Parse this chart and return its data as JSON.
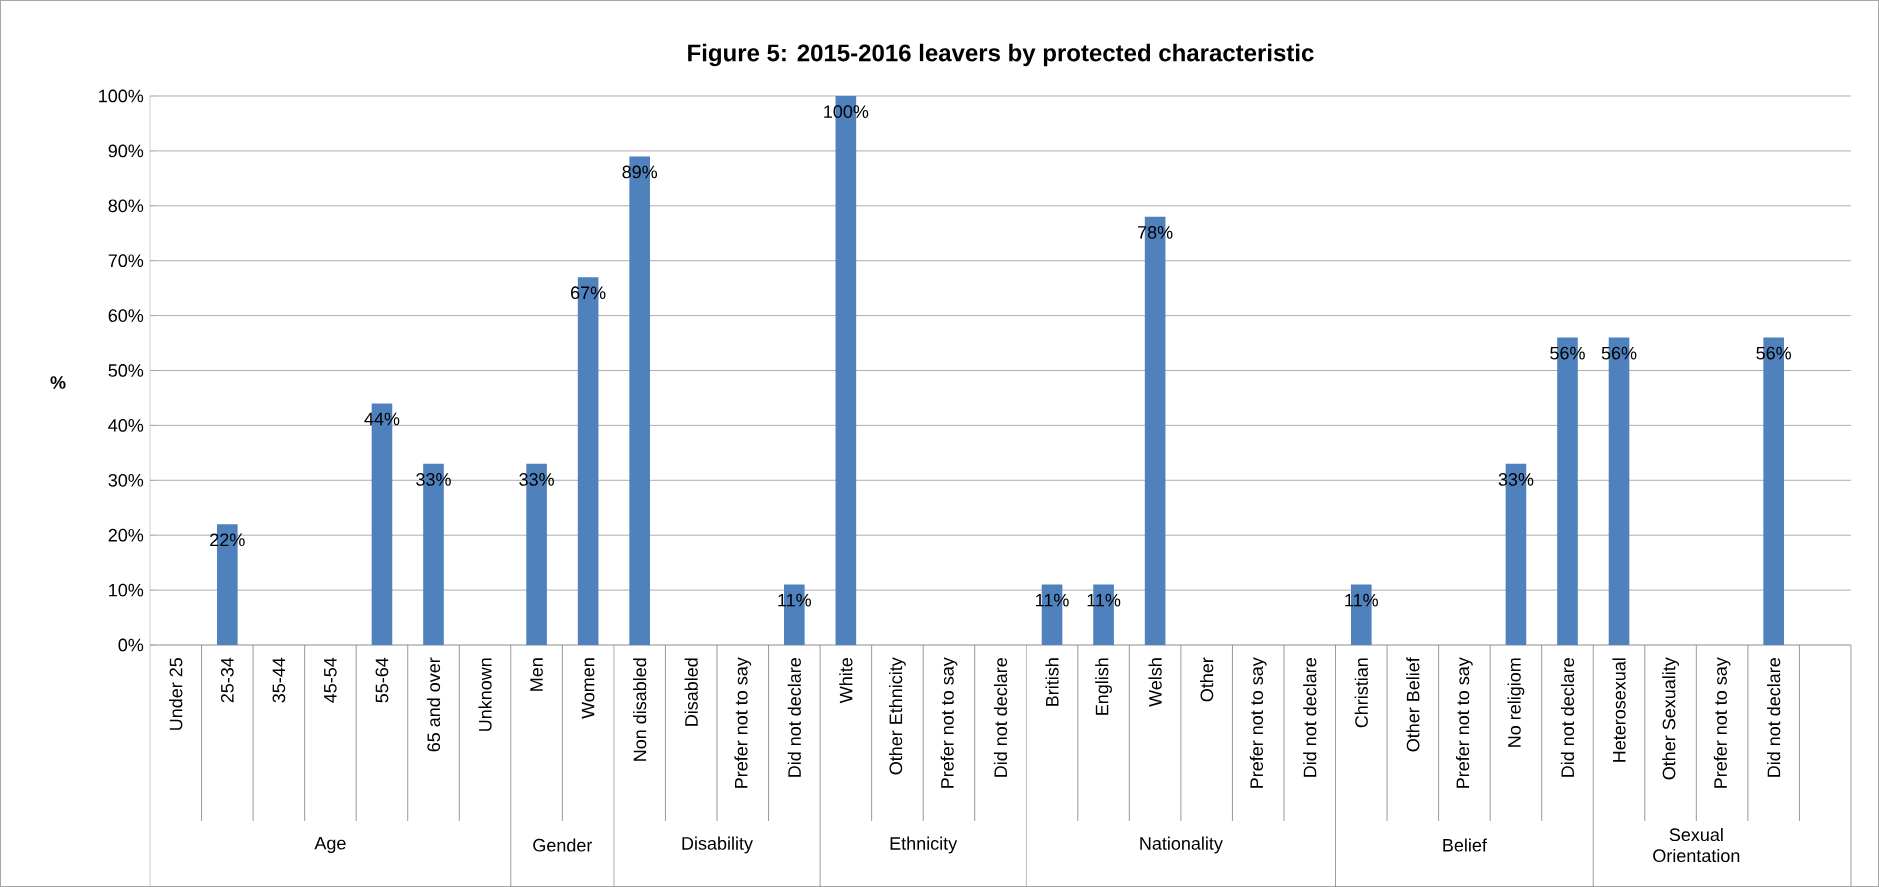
{
  "chart_data": {
    "type": "bar",
    "title": "Figure 5: 2015-2016 leavers by protected characteristic",
    "ylabel": "%",
    "categories": [
      "Under 25",
      "25-34",
      "35-44",
      "45-54",
      "55-64",
      "65 and over",
      "Unknown",
      "Men",
      "Women",
      "Non disabled",
      "Disabled",
      "Prefer not to say",
      "Did not declare",
      "White",
      "Other Ethnicity",
      "Prefer not to say",
      "Did not declare",
      "British",
      "English",
      "Welsh",
      "Other",
      "Prefer not to say",
      "Did not declare",
      "Christian",
      "Other Belief",
      "Prefer not to say",
      "No religiom",
      "Did not declare",
      "Heterosexual",
      "Other Sexuality",
      "Prefer not to say",
      "Did not declare",
      null
    ],
    "values": [
      0,
      22,
      0,
      0,
      44,
      33,
      0,
      33,
      67,
      89,
      0,
      0,
      11,
      100,
      0,
      0,
      0,
      11,
      11,
      78,
      0,
      0,
      0,
      11,
      0,
      0,
      33,
      56,
      56,
      0,
      0,
      56,
      null
    ],
    "value_labels": [
      null,
      "22%",
      null,
      null,
      "44%",
      "33%",
      null,
      "33%",
      "67%",
      "89%",
      null,
      null,
      "11%",
      "100%",
      null,
      null,
      null,
      "11%",
      "11%",
      "78%",
      null,
      null,
      null,
      "11%",
      null,
      null,
      "33%",
      "56%",
      "56%",
      null,
      null,
      "56%",
      null
    ],
    "color": "#4f81bd",
    "ylim": [
      0,
      100
    ],
    "yticks": [
      {
        "value": 0,
        "label": "0%"
      },
      {
        "value": 10,
        "label": "10%"
      },
      {
        "value": 20,
        "label": "20%"
      },
      {
        "value": 30,
        "label": "30%"
      },
      {
        "value": 40,
        "label": "40%"
      },
      {
        "value": 50,
        "label": "50%"
      },
      {
        "value": 60,
        "label": "60%"
      },
      {
        "value": 70,
        "label": "70%"
      },
      {
        "value": 80,
        "label": "80%"
      },
      {
        "value": 90,
        "label": "90%"
      },
      {
        "value": 100,
        "label": "100%"
      }
    ],
    "grid": "y",
    "annotations": [
      "Age",
      "Gender",
      "Disability",
      "Ethnicity",
      "Nationality",
      "Belief",
      "Sexual Orientation"
    ]
  }
}
